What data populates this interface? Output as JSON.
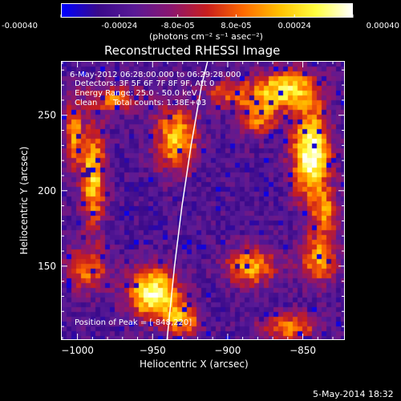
{
  "colorbar": {
    "tick_labels": [
      "-0.00040",
      "-0.00024",
      "-8.0e-05",
      "8.0e-05",
      "0.00024",
      "0.00040"
    ],
    "unit_label": "(photons cm⁻² s⁻¹ asec⁻²)",
    "range": [
      -0.0004,
      0.0004
    ]
  },
  "info": {
    "time_range": "6-May-2012 06:28:00.000 to 06:29:28.000",
    "detectors": "Detectors: 3F 5F 6F 7F 8F 9F, Att 0",
    "energy_range": "Energy Range: 25.0 - 50.0 keV",
    "algorithm": "Clean",
    "total_counts": "Total counts: 1.38E+03",
    "peak": "Position of Peak = [-848,220]"
  },
  "footer": {
    "timestamp": "5-May-2014 18:32"
  },
  "chart_data": {
    "type": "heatmap",
    "title": "Reconstructed RHESSI Image",
    "xlabel": "Heliocentric X (arcsec)",
    "ylabel": "Heliocentric Y (arcsec)",
    "xlim": [
      -1011,
      -822
    ],
    "ylim": [
      101,
      286
    ],
    "x_ticks": [
      -1000,
      -950,
      -900,
      -850
    ],
    "y_ticks": [
      150,
      200,
      250
    ],
    "x_tick_labels": [
      "−1000",
      "−950",
      "−900",
      "−850"
    ],
    "y_tick_labels": [
      "150",
      "200",
      "250"
    ],
    "colormap": [
      "#0000ff",
      "#3a0a8a",
      "#5a1a96",
      "#8a1670",
      "#c81e1e",
      "#ff6a00",
      "#ffc000",
      "#ffff40",
      "#ffffff"
    ],
    "limb_curve": [
      [
        -941,
        101
      ],
      [
        -936,
        150
      ],
      [
        -931,
        190
      ],
      [
        -925,
        230
      ],
      [
        -918,
        270
      ],
      [
        -914,
        286
      ]
    ],
    "peak_position": [
      -848,
      220
    ],
    "hot_spots": [
      {
        "x": -845,
        "y": 225,
        "sx": 9,
        "sy": 22,
        "amp": 1.0
      },
      {
        "x": -862,
        "y": 268,
        "sx": 14,
        "sy": 9,
        "amp": 0.8
      },
      {
        "x": -950,
        "y": 132,
        "sx": 12,
        "sy": 12,
        "amp": 0.95
      },
      {
        "x": -990,
        "y": 210,
        "sx": 6,
        "sy": 24,
        "amp": 0.75
      },
      {
        "x": -1003,
        "y": 240,
        "sx": 4,
        "sy": 16,
        "amp": 0.6
      },
      {
        "x": -975,
        "y": 262,
        "sx": 12,
        "sy": 6,
        "amp": 0.55
      },
      {
        "x": -935,
        "y": 235,
        "sx": 10,
        "sy": 16,
        "amp": 0.7
      },
      {
        "x": -880,
        "y": 250,
        "sx": 9,
        "sy": 10,
        "amp": 0.55
      },
      {
        "x": -900,
        "y": 265,
        "sx": 12,
        "sy": 7,
        "amp": 0.45
      },
      {
        "x": -885,
        "y": 150,
        "sx": 12,
        "sy": 9,
        "amp": 0.65
      },
      {
        "x": -840,
        "y": 155,
        "sx": 9,
        "sy": 12,
        "amp": 0.6
      },
      {
        "x": -995,
        "y": 148,
        "sx": 10,
        "sy": 10,
        "amp": 0.55
      },
      {
        "x": -860,
        "y": 110,
        "sx": 14,
        "sy": 7,
        "amp": 0.55
      },
      {
        "x": -930,
        "y": 115,
        "sx": 8,
        "sy": 8,
        "amp": 0.6
      },
      {
        "x": -835,
        "y": 185,
        "sx": 6,
        "sy": 10,
        "amp": 0.5
      }
    ]
  }
}
